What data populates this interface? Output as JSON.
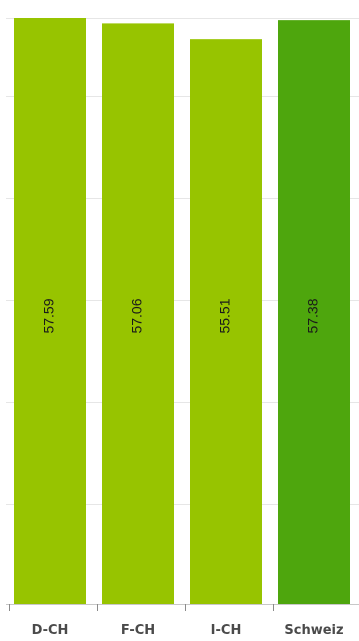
{
  "chart_data": {
    "type": "bar",
    "orientation": "vertical",
    "categories": [
      "D-CH",
      "F-CH",
      "I-CH",
      "Schweiz"
    ],
    "values": [
      57.59,
      57.06,
      55.51,
      57.38
    ],
    "value_labels": [
      "57.59",
      "57.06",
      "55.51",
      "57.38"
    ],
    "ylim": [
      0,
      57.59
    ],
    "grid": true,
    "value_label_orientation": "vertical",
    "colors": [
      "#97c400",
      "#97c400",
      "#97c400",
      "#4ea60d"
    ]
  }
}
